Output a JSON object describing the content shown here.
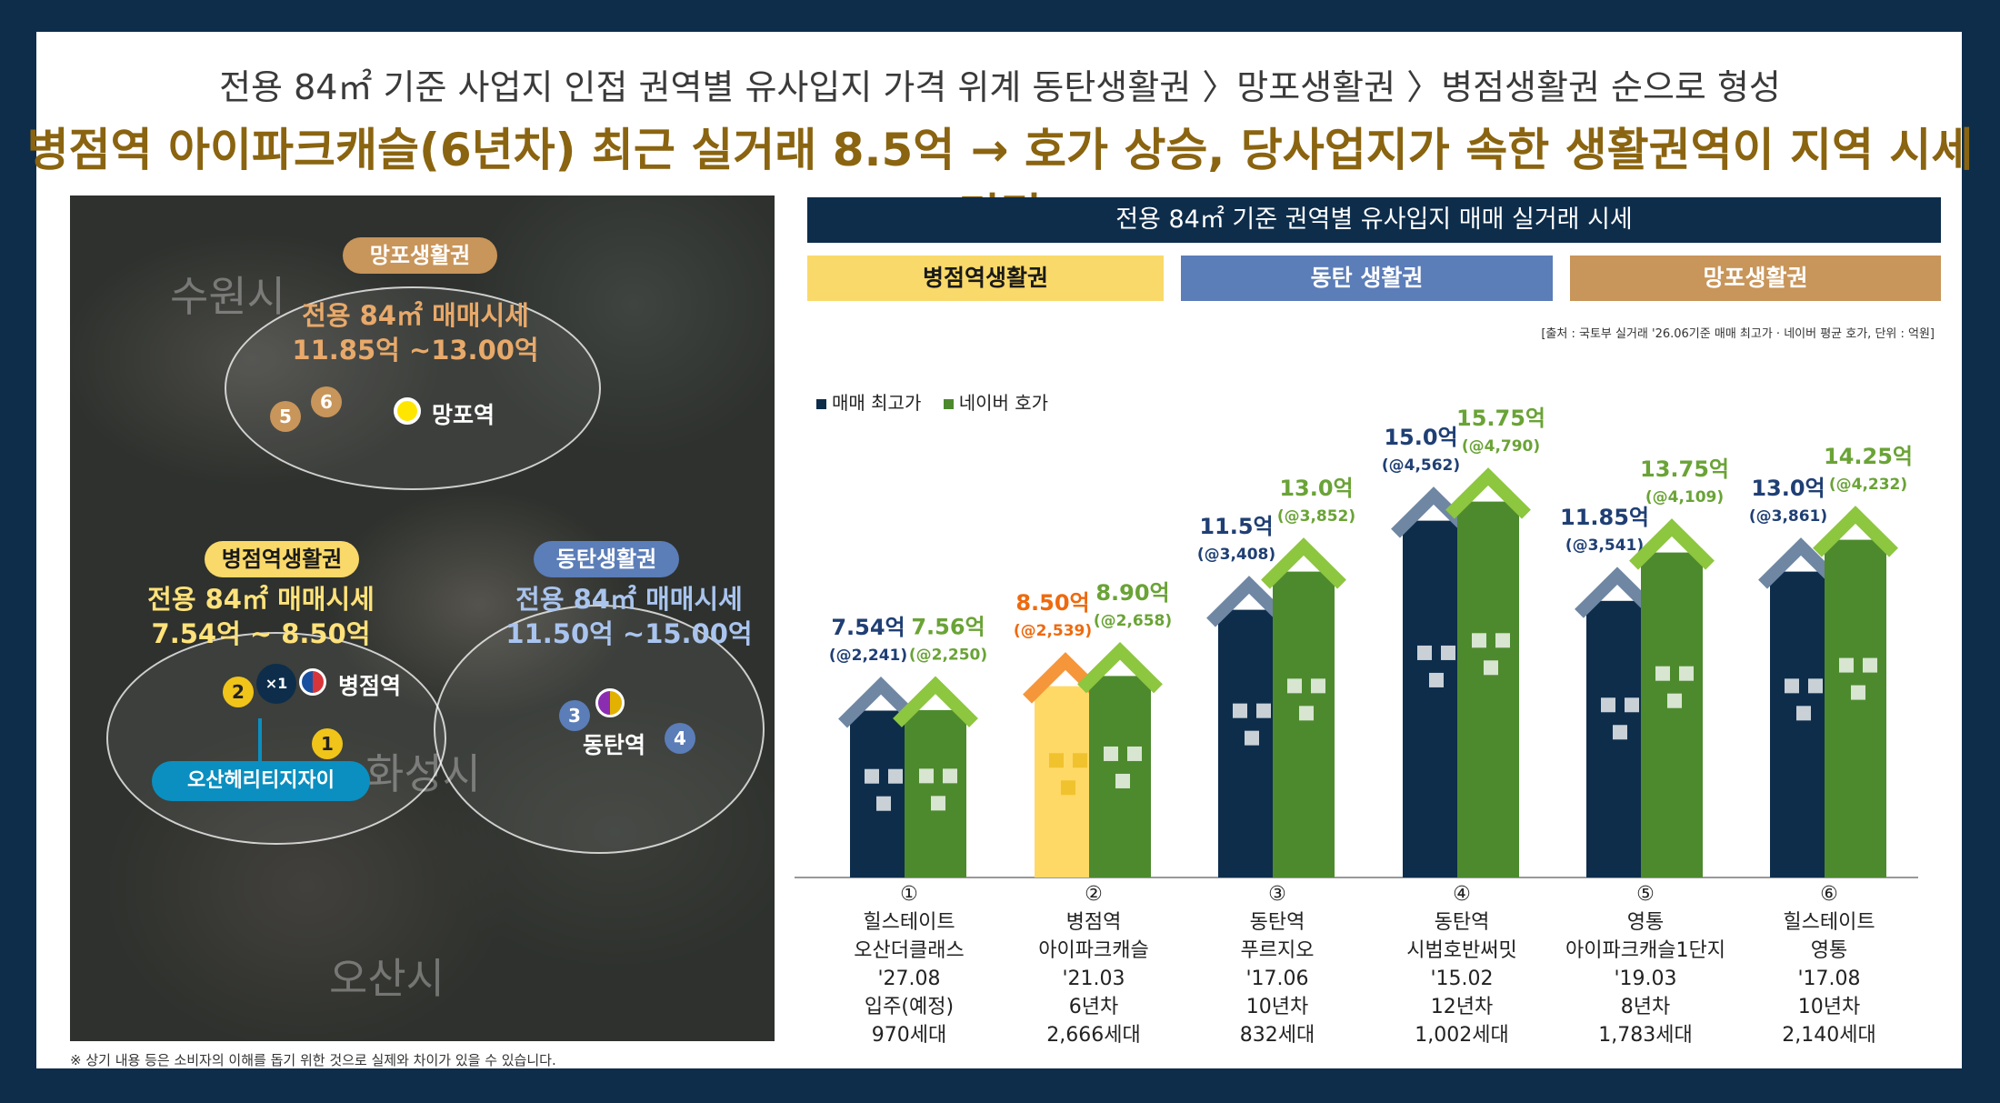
{
  "header": {
    "line1": "전용 84㎡ 기준 사업지 인접 권역별 유사입지 가격 위계 동탄생활권 〉망포생활권 〉병점생활권 순으로 형성",
    "line2": "병점역 아이파크캐슬(6년차) 최근 실거래 8.5억 → 호가 상승, 당사업지가 속한 생활권역이 지역 시세 리딩"
  },
  "map": {
    "cities": [
      "수원시",
      "화성시",
      "오산시"
    ],
    "zones": [
      {
        "name": "망포생활권",
        "line1": "전용 84㎡ 매매시세",
        "line2": "11.85억 ~13.00억",
        "color": "#c8955a"
      },
      {
        "name": "병점역생활권",
        "line1": "전용 84㎡ 매매시세",
        "line2": "7.54억 ~ 8.50억",
        "color": "#f9d96a"
      },
      {
        "name": "동탄생활권",
        "line1": "전용 84㎡ 매매시세",
        "line2": "11.50억 ~15.00억",
        "color": "#5b7db8"
      }
    ],
    "stations": [
      "망포역",
      "병점역",
      "동탄역"
    ],
    "site_label": "오산헤리티지자이",
    "site_icon_text": "×1",
    "markers": [
      "1",
      "2",
      "3",
      "4",
      "5",
      "6"
    ]
  },
  "footnote": "※ 상기 내용 등은 소비자의 이해를 돕기 위한 것으로 실제와 차이가 있을 수 있습니다.",
  "chart_data": {
    "type": "bar",
    "title": "전용 84㎡ 기준 권역별 유사입지 매매 실거래 시세",
    "source": "[출처 : 국토부 실거래 '26.06기준 매매 최고가 · 네이버 평균 호가, 단위 : 억원]",
    "zones": [
      {
        "name": "병점역생활권",
        "color": "#f9d96a",
        "text_color": "#1a1a1a"
      },
      {
        "name": "동탄 생활권",
        "color": "#5b7db8",
        "text_color": "#ffffff"
      },
      {
        "name": "망포생활권",
        "color": "#c8955a",
        "text_color": "#ffffff"
      }
    ],
    "categories": [
      {
        "num": "①",
        "lines": [
          "힐스테이트",
          "오산더클래스",
          "'27.08",
          "입주(예정)",
          "970세대"
        ]
      },
      {
        "num": "②",
        "lines": [
          "병점역",
          "아이파크캐슬",
          "'21.03",
          "6년차",
          "2,666세대"
        ]
      },
      {
        "num": "③",
        "lines": [
          "동탄역",
          "푸르지오",
          "'17.06",
          "10년차",
          "832세대"
        ]
      },
      {
        "num": "④",
        "lines": [
          "동탄역",
          "시범호반써밋",
          "'15.02",
          "12년차",
          "1,002세대"
        ]
      },
      {
        "num": "⑤",
        "lines": [
          "영통",
          "아이파크캐슬1단지",
          "'19.03",
          "8년차",
          "1,783세대"
        ]
      },
      {
        "num": "⑥",
        "lines": [
          "힐스테이트",
          "영통",
          "'17.08",
          "10년차",
          "2,140세대"
        ]
      }
    ],
    "series": [
      {
        "name": "매매 최고가",
        "color": "#0d2d4b",
        "roof": "#6f87a3",
        "values": [
          7.54,
          8.5,
          11.5,
          15.0,
          11.85,
          13.0
        ],
        "labels": [
          "7.54억",
          "8.50억",
          "11.5억",
          "15.0억",
          "11.85억",
          "13.0억"
        ],
        "sub": [
          "(@2,241)",
          "(@2,539)",
          "(@3,408)",
          "(@4,562)",
          "(@3,541)",
          "(@3,861)"
        ]
      },
      {
        "name": "네이버 호가",
        "color": "#4d8a2e",
        "roof": "#8dc63f",
        "values": [
          7.56,
          8.9,
          13.0,
          15.75,
          13.75,
          14.25
        ],
        "labels": [
          "7.56억",
          "8.90억",
          "13.0억",
          "15.75억",
          "13.75억",
          "14.25억"
        ],
        "sub": [
          "(@2,250)",
          "(@2,658)",
          "(@3,852)",
          "(@4,790)",
          "(@4,109)",
          "(@4,232)"
        ]
      }
    ],
    "highlight": {
      "index": 1,
      "series": 0,
      "color": "#ffd966",
      "roof": "#f5963a",
      "label_color": "#ee6a0e"
    },
    "label_colors": [
      "#1f3f74",
      "#6aa336"
    ]
  }
}
